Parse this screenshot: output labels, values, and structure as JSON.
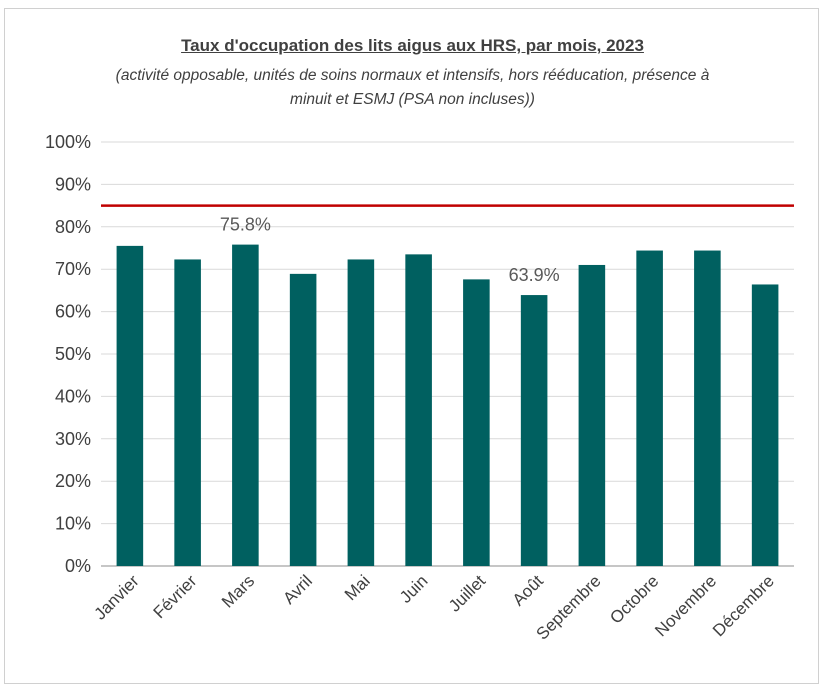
{
  "chart_data": {
    "type": "bar",
    "title": "Taux d'occupation des lits aigus aux HRS, par mois, 2023",
    "subtitle": "(activité opposable, unités de soins normaux et intensifs, hors rééducation, présence à minuit et ESMJ (PSA non incluses))",
    "categories": [
      "Janvier",
      "Février",
      "Mars",
      "Avril",
      "Mai",
      "Juin",
      "Juillet",
      "Août",
      "Septembre",
      "Octobre",
      "Novembre",
      "Décembre"
    ],
    "values": [
      75.5,
      72.3,
      75.8,
      68.9,
      72.3,
      73.5,
      67.6,
      63.9,
      71.0,
      74.4,
      74.4,
      66.4
    ],
    "ylim": [
      0,
      100
    ],
    "yticks": [
      "0%",
      "10%",
      "20%",
      "30%",
      "40%",
      "50%",
      "60%",
      "70%",
      "80%",
      "90%",
      "100%"
    ],
    "data_labels": [
      {
        "index": 2,
        "text": "75.8%"
      },
      {
        "index": 7,
        "text": "63.9%"
      }
    ],
    "reference_line": {
      "value": 85,
      "color": "#c00000"
    },
    "bar_color": "#006060",
    "grid": true,
    "legend": "none"
  }
}
